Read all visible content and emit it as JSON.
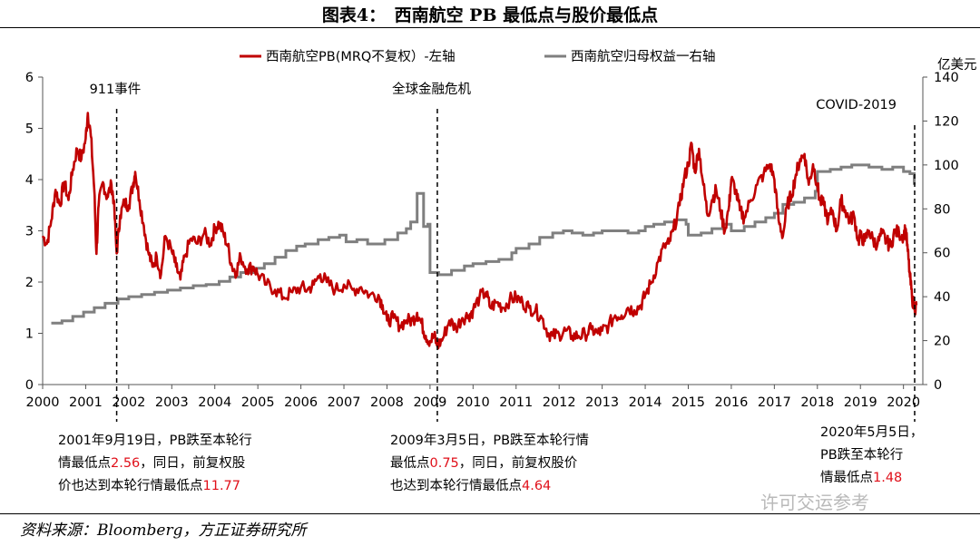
{
  "title": "图表4：　西南航空 PB 最低点与股价最低点",
  "source": "资料来源：Bloomberg，方正证券研究所",
  "watermark": "许可交运参考",
  "legend": {
    "pb": "西南航空PB(MRQ不复权）-左轴",
    "equity": "西南航空归母权益一右轴"
  },
  "right_unit": "亿美元",
  "events": [
    {
      "label": "911事件",
      "x": 2001.72
    },
    {
      "label": "全球金融危机",
      "x": 2009.17
    },
    {
      "label": "COVID-2019",
      "x": 2020.26
    }
  ],
  "notes": [
    {
      "l1": "2001年9月19日，PB跌至本轮行",
      "l2": "情最低点",
      "v1": "2.56",
      "l2b": "，同日，前复权股",
      "l3": "价也达到本轮行情最低点",
      "v2": "11.77"
    },
    {
      "l1": "2009年3月5日，PB跌至本轮行情",
      "l2": "最低点",
      "v1": "0.75",
      "l2b": "，同日，前复权股价",
      "l3": "也达到本轮行情最低点",
      "v2": "4.64"
    },
    {
      "l1": "2020年5月5日，",
      "l2": "PB跌至本轮行",
      "l3": "情最低点",
      "v1": "1.48"
    }
  ],
  "colors": {
    "pb": "#c00000",
    "equity": "#7f7f7f",
    "event_line": "#000000",
    "highlight": "#e0101a"
  },
  "chart_data": {
    "type": "line",
    "x_ticks": [
      "2000",
      "2001",
      "2002",
      "2003",
      "2004",
      "2005",
      "2006",
      "2007",
      "2008",
      "2009",
      "2010",
      "2011",
      "2012",
      "2013",
      "2014",
      "2015",
      "2016",
      "2017",
      "2018",
      "2019",
      "2020"
    ],
    "xlim": [
      2000,
      2020.45
    ],
    "ylim_left": [
      0,
      6
    ],
    "y_ticks_left": [
      "0",
      "1",
      "2",
      "3",
      "4",
      "5",
      "6"
    ],
    "ylim_right": [
      0,
      140
    ],
    "y_ticks_right": [
      "0",
      "20",
      "40",
      "60",
      "80",
      "100",
      "120",
      "140"
    ],
    "legend_position": "top",
    "grid": false,
    "series": [
      {
        "name": "西南航空PB(MRQ不复权）-左轴",
        "axis": "left",
        "points": [
          [
            2000.0,
            2.9
          ],
          [
            2000.1,
            2.75
          ],
          [
            2000.2,
            3.2
          ],
          [
            2000.3,
            3.8
          ],
          [
            2000.4,
            3.5
          ],
          [
            2000.5,
            3.95
          ],
          [
            2000.6,
            3.6
          ],
          [
            2000.7,
            4.2
          ],
          [
            2000.8,
            4.6
          ],
          [
            2000.9,
            4.4
          ],
          [
            2001.0,
            4.8
          ],
          [
            2001.05,
            5.3
          ],
          [
            2001.12,
            4.85
          ],
          [
            2001.2,
            3.8
          ],
          [
            2001.25,
            2.55
          ],
          [
            2001.3,
            3.5
          ],
          [
            2001.4,
            3.95
          ],
          [
            2001.5,
            3.65
          ],
          [
            2001.6,
            3.9
          ],
          [
            2001.65,
            3.6
          ],
          [
            2001.72,
            2.56
          ],
          [
            2001.8,
            3.3
          ],
          [
            2001.9,
            3.55
          ],
          [
            2002.0,
            3.5
          ],
          [
            2002.1,
            3.9
          ],
          [
            2002.15,
            4.15
          ],
          [
            2002.25,
            3.6
          ],
          [
            2002.35,
            3.1
          ],
          [
            2002.45,
            2.6
          ],
          [
            2002.55,
            2.3
          ],
          [
            2002.65,
            2.5
          ],
          [
            2002.75,
            2.15
          ],
          [
            2002.85,
            2.9
          ],
          [
            2003.0,
            2.6
          ],
          [
            2003.1,
            2.3
          ],
          [
            2003.2,
            2.05
          ],
          [
            2003.3,
            2.5
          ],
          [
            2003.45,
            2.85
          ],
          [
            2003.6,
            2.75
          ],
          [
            2003.75,
            2.95
          ],
          [
            2003.9,
            2.75
          ],
          [
            2004.0,
            3.05
          ],
          [
            2004.1,
            3.15
          ],
          [
            2004.2,
            2.95
          ],
          [
            2004.3,
            2.7
          ],
          [
            2004.4,
            2.3
          ],
          [
            2004.5,
            2.2
          ],
          [
            2004.6,
            2.5
          ],
          [
            2004.75,
            2.25
          ],
          [
            2004.9,
            2.3
          ],
          [
            2005.0,
            2.15
          ],
          [
            2005.2,
            1.95
          ],
          [
            2005.4,
            1.85
          ],
          [
            2005.6,
            1.7
          ],
          [
            2005.8,
            1.8
          ],
          [
            2006.0,
            1.9
          ],
          [
            2006.15,
            1.85
          ],
          [
            2006.3,
            1.95
          ],
          [
            2006.45,
            2.15
          ],
          [
            2006.6,
            2.0
          ],
          [
            2006.8,
            1.85
          ],
          [
            2007.0,
            1.95
          ],
          [
            2007.2,
            1.85
          ],
          [
            2007.4,
            1.9
          ],
          [
            2007.6,
            1.75
          ],
          [
            2007.8,
            1.75
          ],
          [
            2007.9,
            1.55
          ],
          [
            2008.0,
            1.25
          ],
          [
            2008.15,
            1.3
          ],
          [
            2008.3,
            1.15
          ],
          [
            2008.45,
            1.25
          ],
          [
            2008.6,
            1.25
          ],
          [
            2008.7,
            1.4
          ],
          [
            2008.8,
            1.2
          ],
          [
            2008.9,
            0.95
          ],
          [
            2009.0,
            0.85
          ],
          [
            2009.1,
            0.95
          ],
          [
            2009.17,
            0.75
          ],
          [
            2009.3,
            0.9
          ],
          [
            2009.45,
            1.25
          ],
          [
            2009.6,
            1.1
          ],
          [
            2009.75,
            1.3
          ],
          [
            2009.9,
            1.35
          ],
          [
            2010.0,
            1.45
          ],
          [
            2010.15,
            1.7
          ],
          [
            2010.3,
            1.8
          ],
          [
            2010.4,
            1.5
          ],
          [
            2010.55,
            1.6
          ],
          [
            2010.7,
            1.5
          ],
          [
            2010.85,
            1.65
          ],
          [
            2011.0,
            1.7
          ],
          [
            2011.15,
            1.6
          ],
          [
            2011.3,
            1.5
          ],
          [
            2011.45,
            1.45
          ],
          [
            2011.6,
            1.3
          ],
          [
            2011.75,
            1.0
          ],
          [
            2011.85,
            0.95
          ],
          [
            2012.0,
            0.98
          ],
          [
            2012.15,
            1.05
          ],
          [
            2012.3,
            0.95
          ],
          [
            2012.45,
            0.95
          ],
          [
            2012.6,
            0.98
          ],
          [
            2012.75,
            1.08
          ],
          [
            2012.9,
            1.0
          ],
          [
            2013.0,
            1.05
          ],
          [
            2013.15,
            1.15
          ],
          [
            2013.3,
            1.35
          ],
          [
            2013.45,
            1.35
          ],
          [
            2013.6,
            1.5
          ],
          [
            2013.75,
            1.45
          ],
          [
            2013.9,
            1.55
          ],
          [
            2014.0,
            1.75
          ],
          [
            2014.15,
            2.0
          ],
          [
            2014.3,
            2.4
          ],
          [
            2014.45,
            2.7
          ],
          [
            2014.55,
            2.75
          ],
          [
            2014.65,
            3.0
          ],
          [
            2014.8,
            3.5
          ],
          [
            2014.9,
            4.0
          ],
          [
            2015.0,
            4.3
          ],
          [
            2015.08,
            4.7
          ],
          [
            2015.15,
            4.15
          ],
          [
            2015.25,
            4.6
          ],
          [
            2015.35,
            3.9
          ],
          [
            2015.45,
            3.3
          ],
          [
            2015.55,
            3.6
          ],
          [
            2015.65,
            3.8
          ],
          [
            2015.75,
            3.4
          ],
          [
            2015.85,
            3.0
          ],
          [
            2015.95,
            3.5
          ],
          [
            2016.0,
            4.0
          ],
          [
            2016.1,
            3.8
          ],
          [
            2016.2,
            3.4
          ],
          [
            2016.3,
            3.25
          ],
          [
            2016.45,
            3.6
          ],
          [
            2016.6,
            3.9
          ],
          [
            2016.75,
            4.1
          ],
          [
            2016.9,
            4.3
          ],
          [
            2017.0,
            4.0
          ],
          [
            2017.1,
            3.2
          ],
          [
            2017.2,
            2.9
          ],
          [
            2017.3,
            3.5
          ],
          [
            2017.4,
            3.7
          ],
          [
            2017.5,
            4.1
          ],
          [
            2017.6,
            4.4
          ],
          [
            2017.7,
            4.5
          ],
          [
            2017.8,
            3.9
          ],
          [
            2017.9,
            4.3
          ],
          [
            2018.0,
            3.9
          ],
          [
            2018.05,
            3.6
          ],
          [
            2018.15,
            3.5
          ],
          [
            2018.25,
            3.2
          ],
          [
            2018.35,
            3.4
          ],
          [
            2018.45,
            3.0
          ],
          [
            2018.55,
            3.6
          ],
          [
            2018.65,
            3.4
          ],
          [
            2018.75,
            3.2
          ],
          [
            2018.85,
            3.3
          ],
          [
            2018.95,
            2.8
          ],
          [
            2019.0,
            2.9
          ],
          [
            2019.1,
            2.8
          ],
          [
            2019.2,
            3.0
          ],
          [
            2019.3,
            2.8
          ],
          [
            2019.4,
            2.75
          ],
          [
            2019.5,
            2.95
          ],
          [
            2019.6,
            2.8
          ],
          [
            2019.7,
            2.7
          ],
          [
            2019.8,
            3.0
          ],
          [
            2019.9,
            2.95
          ],
          [
            2020.0,
            2.9
          ],
          [
            2020.05,
            3.05
          ],
          [
            2020.1,
            2.6
          ],
          [
            2020.15,
            2.1
          ],
          [
            2020.2,
            1.7
          ],
          [
            2020.26,
            1.48
          ],
          [
            2020.3,
            1.55
          ]
        ]
      },
      {
        "name": "西南航空归母权益一右轴",
        "axis": "right",
        "points": [
          [
            2000.2,
            28
          ],
          [
            2000.45,
            29
          ],
          [
            2000.7,
            31
          ],
          [
            2000.95,
            33
          ],
          [
            2001.2,
            35
          ],
          [
            2001.45,
            37
          ],
          [
            2001.75,
            39
          ],
          [
            2002.0,
            40
          ],
          [
            2002.3,
            41
          ],
          [
            2002.6,
            42
          ],
          [
            2002.9,
            43
          ],
          [
            2003.2,
            44
          ],
          [
            2003.5,
            45
          ],
          [
            2003.8,
            45.5
          ],
          [
            2004.1,
            47
          ],
          [
            2004.35,
            49
          ],
          [
            2004.6,
            51
          ],
          [
            2004.9,
            53
          ],
          [
            2005.15,
            55
          ],
          [
            2005.4,
            58
          ],
          [
            2005.65,
            61
          ],
          [
            2005.9,
            63
          ],
          [
            2006.1,
            64
          ],
          [
            2006.4,
            66
          ],
          [
            2006.65,
            67
          ],
          [
            2006.9,
            68
          ],
          [
            2007.05,
            65
          ],
          [
            2007.3,
            66
          ],
          [
            2007.55,
            64
          ],
          [
            2007.8,
            64
          ],
          [
            2007.95,
            66
          ],
          [
            2008.25,
            69
          ],
          [
            2008.45,
            71
          ],
          [
            2008.55,
            74
          ],
          [
            2008.7,
            87
          ],
          [
            2008.85,
            72
          ],
          [
            2008.95,
            73
          ],
          [
            2009.0,
            51
          ],
          [
            2009.2,
            50
          ],
          [
            2009.5,
            52
          ],
          [
            2009.8,
            54
          ],
          [
            2010.0,
            55
          ],
          [
            2010.3,
            56
          ],
          [
            2010.6,
            57
          ],
          [
            2010.9,
            60
          ],
          [
            2011.0,
            62
          ],
          [
            2011.3,
            64
          ],
          [
            2011.55,
            67
          ],
          [
            2011.75,
            67
          ],
          [
            2011.85,
            69
          ],
          [
            2012.1,
            70
          ],
          [
            2012.3,
            69
          ],
          [
            2012.55,
            68
          ],
          [
            2012.8,
            69
          ],
          [
            2013.0,
            70
          ],
          [
            2013.3,
            70
          ],
          [
            2013.6,
            69
          ],
          [
            2013.85,
            70
          ],
          [
            2014.0,
            72
          ],
          [
            2014.2,
            73
          ],
          [
            2014.45,
            74
          ],
          [
            2014.7,
            75
          ],
          [
            2014.95,
            73
          ],
          [
            2015.0,
            68
          ],
          [
            2015.3,
            69
          ],
          [
            2015.55,
            71
          ],
          [
            2015.8,
            73
          ],
          [
            2016.0,
            70
          ],
          [
            2016.3,
            72
          ],
          [
            2016.55,
            74
          ],
          [
            2016.8,
            76
          ],
          [
            2017.0,
            78
          ],
          [
            2017.2,
            82
          ],
          [
            2017.45,
            83
          ],
          [
            2017.7,
            85
          ],
          [
            2017.95,
            88
          ],
          [
            2018.0,
            97
          ],
          [
            2018.3,
            98
          ],
          [
            2018.55,
            99
          ],
          [
            2018.8,
            100
          ],
          [
            2019.0,
            100
          ],
          [
            2019.2,
            99
          ],
          [
            2019.5,
            98
          ],
          [
            2019.75,
            99
          ],
          [
            2020.0,
            97
          ],
          [
            2020.15,
            96
          ],
          [
            2020.25,
            91
          ]
        ]
      }
    ]
  }
}
